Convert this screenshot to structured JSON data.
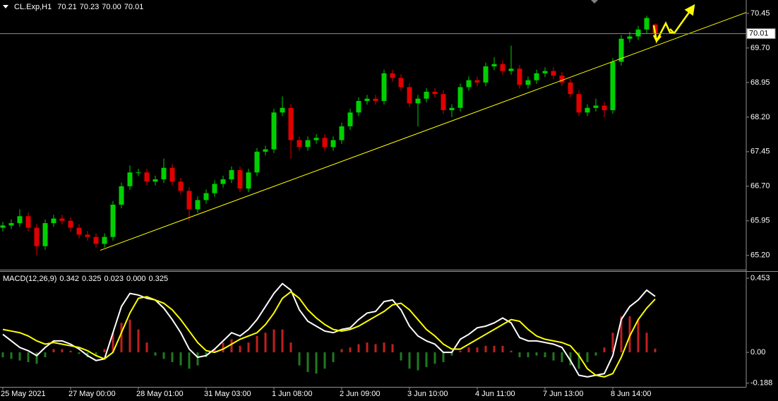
{
  "chart_data": {
    "type": "candlestick",
    "title": "CL.Exp,H1",
    "last_low_label": "70.00",
    "categories": [
      "25 May 2021",
      null,
      null,
      null,
      null,
      null,
      null,
      null,
      "27 May 00:00",
      null,
      null,
      null,
      null,
      null,
      null,
      null,
      "28 May 01:00",
      null,
      null,
      null,
      null,
      null,
      null,
      null,
      "31 May 03:00",
      null,
      null,
      null,
      null,
      null,
      null,
      null,
      "1 Jun 08:00",
      null,
      null,
      null,
      null,
      null,
      null,
      null,
      "2 Jun 09:00",
      null,
      null,
      null,
      null,
      null,
      null,
      null,
      "3 Jun 10:00",
      null,
      null,
      null,
      null,
      null,
      null,
      null,
      "4 Jun 11:00",
      null,
      null,
      null,
      null,
      null,
      null,
      null,
      "7 Jun 13:00",
      null,
      null,
      null,
      null,
      null,
      null,
      null,
      "8 Jun 14:00",
      null,
      null,
      null,
      null,
      null
    ],
    "open": [
      65.8,
      65.85,
      65.9,
      66.05,
      65.8,
      65.4,
      65.9,
      66.0,
      65.95,
      65.8,
      65.65,
      65.6,
      65.45,
      65.6,
      66.3,
      66.7,
      67.0,
      67.0,
      66.8,
      66.85,
      67.1,
      66.8,
      66.6,
      66.2,
      66.4,
      66.55,
      66.75,
      66.85,
      67.05,
      66.65,
      67.0,
      67.45,
      67.5,
      68.3,
      68.4,
      67.7,
      67.55,
      67.7,
      67.75,
      67.55,
      67.7,
      68.0,
      68.3,
      68.55,
      68.6,
      68.55,
      69.15,
      69.05,
      68.85,
      68.5,
      68.6,
      68.75,
      68.7,
      68.35,
      68.4,
      68.85,
      69.0,
      68.95,
      69.3,
      69.35,
      69.2,
      69.25,
      68.9,
      69.0,
      69.15,
      69.2,
      69.1,
      68.95,
      68.7,
      68.3,
      68.4,
      68.45,
      68.35,
      69.4,
      69.9,
      69.95,
      70.1,
      70.21
    ],
    "high": [
      65.93,
      65.98,
      66.2,
      66.13,
      65.88,
      65.98,
      66.08,
      66.08,
      66.03,
      65.88,
      65.73,
      65.68,
      65.68,
      66.38,
      66.78,
      67.15,
      67.08,
      67.08,
      66.93,
      67.3,
      67.18,
      66.88,
      66.68,
      66.48,
      66.63,
      66.83,
      66.93,
      67.13,
      67.13,
      67.08,
      67.53,
      67.58,
      68.38,
      68.65,
      68.48,
      67.78,
      67.78,
      67.83,
      67.83,
      67.78,
      68.08,
      68.38,
      68.63,
      68.68,
      68.68,
      69.23,
      69.23,
      69.13,
      68.93,
      68.68,
      68.83,
      68.83,
      68.78,
      68.48,
      68.93,
      69.08,
      69.08,
      69.38,
      69.5,
      69.43,
      69.75,
      69.33,
      69.08,
      69.23,
      69.28,
      69.28,
      69.18,
      69.03,
      68.78,
      68.48,
      68.6,
      68.53,
      69.48,
      69.98,
      70.05,
      70.18,
      70.4,
      70.23
    ],
    "low": [
      65.72,
      65.77,
      65.82,
      65.72,
      65.2,
      65.32,
      65.82,
      65.87,
      65.72,
      65.57,
      65.52,
      65.37,
      65.37,
      65.52,
      66.22,
      66.62,
      66.92,
      66.72,
      66.72,
      66.77,
      66.72,
      66.52,
      65.95,
      66.12,
      66.32,
      66.47,
      66.67,
      66.77,
      66.57,
      66.57,
      66.92,
      67.37,
      67.42,
      68.22,
      67.3,
      67.47,
      67.47,
      67.62,
      67.47,
      67.47,
      67.62,
      67.92,
      68.22,
      68.47,
      68.47,
      68.47,
      68.97,
      68.77,
      68.42,
      68.0,
      68.52,
      68.62,
      68.27,
      68.2,
      68.32,
      68.77,
      68.87,
      68.87,
      69.22,
      69.12,
      69.12,
      68.82,
      68.82,
      68.92,
      69.07,
      69.02,
      68.87,
      68.62,
      68.22,
      68.22,
      68.32,
      68.2,
      68.27,
      69.32,
      69.82,
      69.87,
      70.02,
      70.0
    ],
    "close": [
      65.85,
      65.9,
      66.05,
      65.8,
      65.4,
      65.9,
      66.0,
      65.95,
      65.8,
      65.65,
      65.6,
      65.45,
      65.6,
      66.3,
      66.7,
      67.0,
      67.0,
      66.8,
      66.85,
      67.1,
      66.8,
      66.6,
      66.2,
      66.4,
      66.55,
      66.75,
      66.85,
      67.05,
      66.65,
      67.0,
      67.45,
      67.5,
      68.3,
      68.4,
      67.7,
      67.55,
      67.7,
      67.75,
      67.55,
      67.7,
      68.0,
      68.3,
      68.55,
      68.6,
      68.55,
      69.15,
      69.05,
      68.85,
      68.5,
      68.6,
      68.75,
      68.7,
      68.35,
      68.4,
      68.85,
      69.0,
      68.95,
      69.3,
      69.35,
      69.2,
      69.25,
      68.9,
      69.0,
      69.15,
      69.2,
      69.1,
      68.95,
      68.7,
      68.3,
      68.4,
      68.45,
      68.35,
      69.4,
      69.9,
      69.95,
      70.1,
      70.35,
      70.01
    ],
    "up_color": "#00d000",
    "down_color": "#e00000",
    "ylim": [
      64.89,
      70.74
    ],
    "yticks": [
      70.45,
      {
        "value": 69.7,
        "label": "69.70"
      },
      68.95,
      {
        "value": 68.2,
        "label": "68.20"
      },
      67.45,
      {
        "value": 66.7,
        "label": "66.70"
      },
      65.95,
      {
        "value": 65.2,
        "label": "65.20"
      }
    ],
    "trendline": {
      "x": [
        11.5,
        87.9
      ],
      "y": [
        65.31,
        70.48
      ],
      "color": "#ffff00"
    },
    "indicator": {
      "type": "macd",
      "title": "MACD(12,26,9)",
      "ylim": [
        -0.211,
        0.492
      ],
      "yticks": [
        0.453,
        {
          "value": 0,
          "label": "0.00"
        },
        -0.188
      ],
      "extra_values": [
        {
          "value": 0,
          "label": "0.000"
        },
        0.325
      ],
      "histogram": {
        "up_color": "#c02020",
        "down_color": "#1f7a1f",
        "values": [
          -0.03,
          -0.04,
          -0.05,
          -0.06,
          -0.07,
          -0.03,
          0.02,
          0.02,
          0.01,
          -0.01,
          -0.03,
          -0.02,
          0.02,
          0.12,
          0.18,
          0.2,
          0.14,
          0.06,
          -0.02,
          -0.04,
          -0.06,
          -0.08,
          -0.1,
          -0.08,
          -0.03,
          0.02,
          0.06,
          0.08,
          0.04,
          0.06,
          0.1,
          0.12,
          0.14,
          0.14,
          0.06,
          -0.08,
          -0.12,
          -0.13,
          -0.1,
          -0.06,
          0.02,
          0.03,
          0.05,
          0.06,
          0.05,
          0.06,
          0.05,
          -0.05,
          -0.1,
          -0.11,
          -0.09,
          -0.07,
          -0.06,
          -0.02,
          0.01,
          0.03,
          0.03,
          0.04,
          0.04,
          0.04,
          0.01,
          -0.03,
          -0.03,
          -0.02,
          -0.03,
          -0.05,
          -0.06,
          -0.08,
          -0.1,
          -0.06,
          -0.02,
          0.03,
          0.12,
          0.22,
          0.22,
          0.2,
          0.12,
          0.023
        ]
      },
      "series": [
        {
          "color": "#ffffff",
          "values": [
            0.11,
            0.07,
            0.03,
            0.01,
            -0.02,
            0.03,
            0.07,
            0.07,
            0.05,
            0.02,
            -0.02,
            -0.05,
            -0.04,
            0.12,
            0.28,
            0.36,
            0.35,
            0.33,
            0.32,
            0.27,
            0.2,
            0.12,
            0.02,
            -0.03,
            -0.02,
            0.02,
            0.07,
            0.12,
            0.1,
            0.14,
            0.2,
            0.28,
            0.36,
            0.42,
            0.38,
            0.26,
            0.19,
            0.16,
            0.13,
            0.12,
            0.14,
            0.15,
            0.2,
            0.24,
            0.25,
            0.31,
            0.32,
            0.26,
            0.16,
            0.1,
            0.07,
            0.05,
            0.0,
            0.0,
            0.08,
            0.11,
            0.15,
            0.16,
            0.18,
            0.21,
            0.18,
            0.09,
            0.07,
            0.07,
            0.06,
            0.05,
            0.03,
            -0.05,
            -0.14,
            -0.15,
            -0.14,
            -0.13,
            -0.02,
            0.2,
            0.28,
            0.32,
            0.38,
            0.342
          ]
        },
        {
          "color": "#ffff00",
          "values": [
            0.14,
            0.13,
            0.12,
            0.1,
            0.07,
            0.05,
            0.06,
            0.05,
            0.04,
            0.03,
            0.01,
            -0.02,
            -0.04,
            0.0,
            0.12,
            0.24,
            0.33,
            0.34,
            0.32,
            0.3,
            0.26,
            0.2,
            0.13,
            0.06,
            0.01,
            0.0,
            0.02,
            0.05,
            0.08,
            0.1,
            0.12,
            0.17,
            0.24,
            0.33,
            0.37,
            0.33,
            0.26,
            0.21,
            0.17,
            0.14,
            0.13,
            0.14,
            0.16,
            0.19,
            0.22,
            0.25,
            0.29,
            0.3,
            0.26,
            0.2,
            0.14,
            0.1,
            0.05,
            0.02,
            0.02,
            0.05,
            0.08,
            0.11,
            0.14,
            0.17,
            0.2,
            0.19,
            0.14,
            0.1,
            0.08,
            0.07,
            0.06,
            0.04,
            -0.02,
            -0.1,
            -0.14,
            -0.15,
            -0.13,
            -0.03,
            0.1,
            0.2,
            0.27,
            0.325
          ]
        }
      ]
    }
  }
}
